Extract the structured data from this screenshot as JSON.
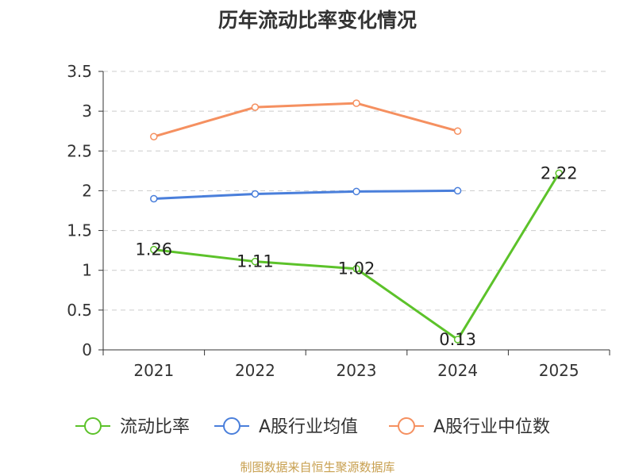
{
  "chart_data": {
    "type": "line",
    "title": "历年流动比率变化情况",
    "categories": [
      "2021",
      "2022",
      "2023",
      "2024",
      "2025"
    ],
    "ylim": [
      0,
      3.5
    ],
    "yticks": [
      0,
      0.5,
      1,
      1.5,
      2,
      2.5,
      3,
      3.5
    ],
    "ytick_labels": [
      "0",
      "0.5",
      "1",
      "1.5",
      "2",
      "2.5",
      "3",
      "3.5"
    ],
    "grid": true,
    "legend_position": "bottom",
    "series": [
      {
        "name": "流动比率",
        "color": "#5cc22a",
        "values": [
          1.26,
          1.11,
          1.02,
          0.13,
          2.22
        ],
        "labels": [
          "1.26",
          "1.11",
          "1.02",
          "0.13",
          "2.22"
        ],
        "show_labels": true
      },
      {
        "name": "A股行业均值",
        "color": "#4a7fdb",
        "values": [
          1.9,
          1.96,
          1.99,
          2.0,
          null
        ],
        "show_labels": false
      },
      {
        "name": "A股行业中位数",
        "color": "#f59060",
        "values": [
          2.68,
          3.05,
          3.1,
          2.75,
          null
        ],
        "show_labels": false
      }
    ]
  },
  "source_text": "制图数据来自恒生聚源数据库"
}
